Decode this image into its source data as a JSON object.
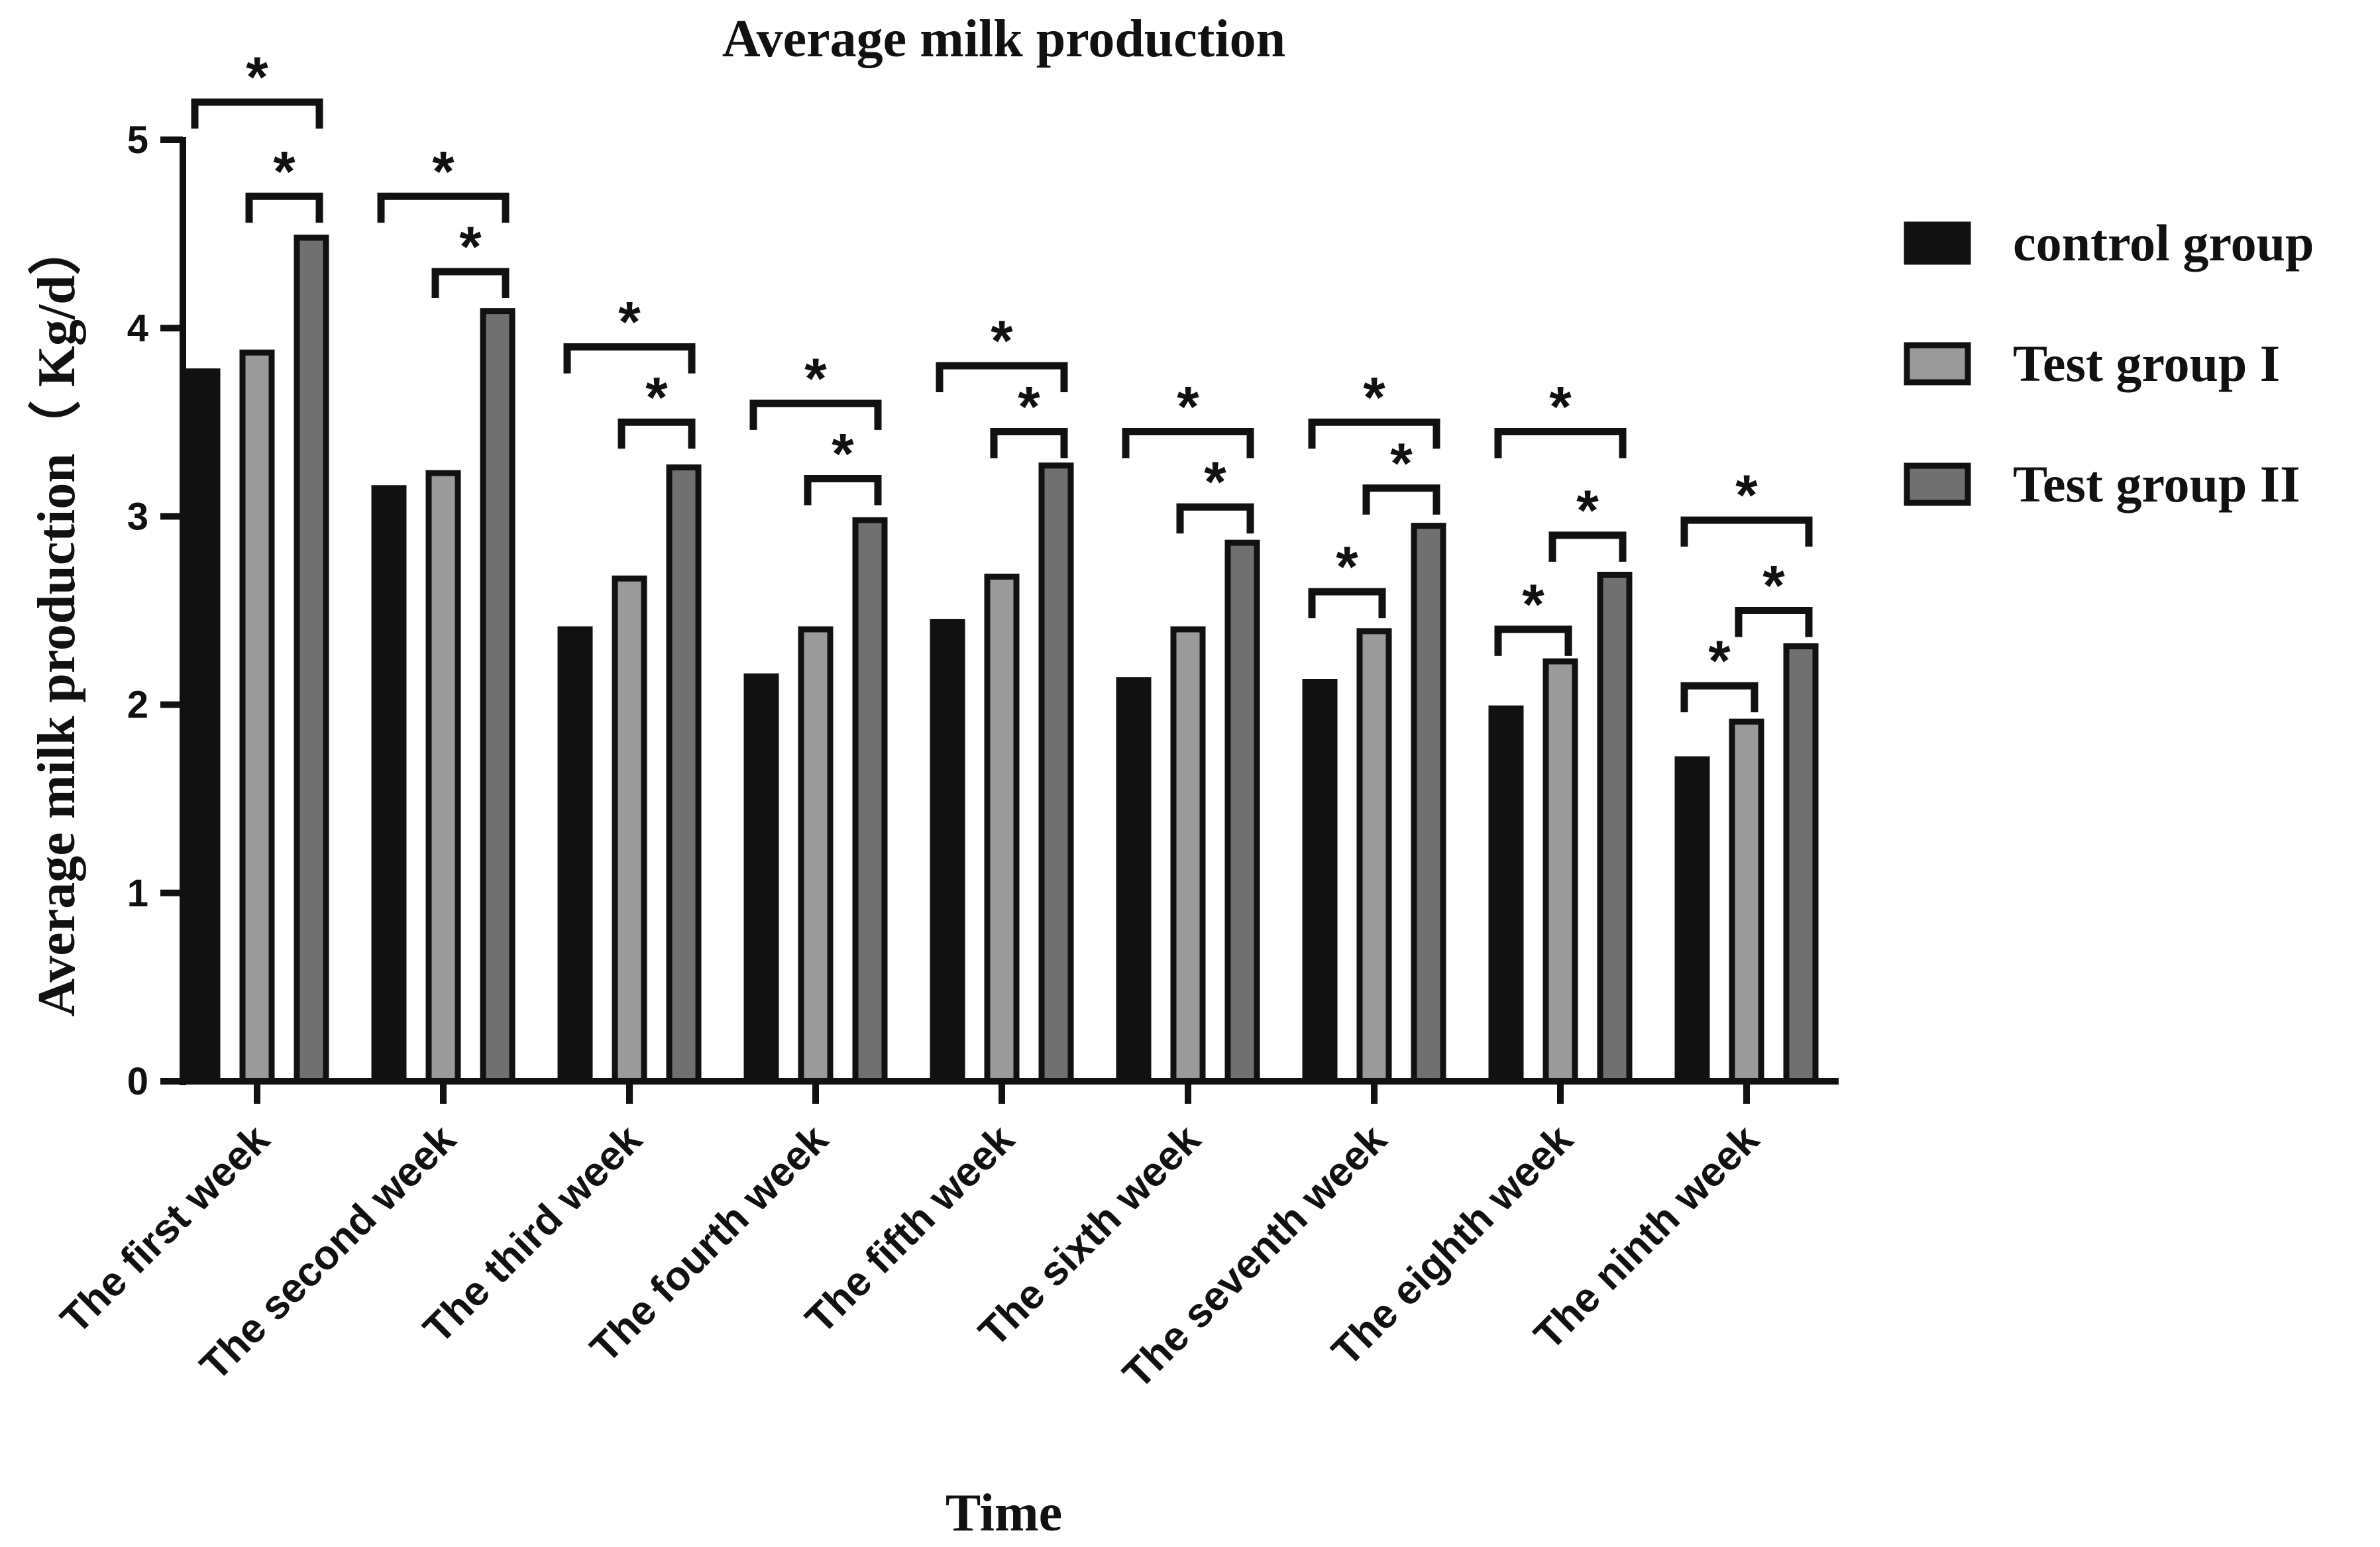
{
  "chart_data": {
    "type": "bar",
    "title": "Average milk production",
    "xlabel": "Time",
    "ylabel": "Average milk production（ Kg/d）",
    "ylim": [
      0,
      5
    ],
    "yticks": [
      "0",
      "1",
      "2",
      "3",
      "4",
      "5"
    ],
    "grid": false,
    "legend_position": "right",
    "categories": [
      "The first week",
      "The second week",
      "The third week",
      "The fourth week",
      "The fifth week",
      "The sixth week",
      "The seventh week",
      "The eighth week",
      "The ninth week"
    ],
    "series": [
      {
        "name": "control group",
        "color": "#111111",
        "values": [
          3.77,
          3.15,
          2.4,
          2.15,
          2.44,
          2.13,
          2.12,
          1.98,
          1.71
        ]
      },
      {
        "name": "Test group I",
        "color": "#9a9a9a",
        "values": [
          3.87,
          3.23,
          2.67,
          2.4,
          2.68,
          2.4,
          2.39,
          2.23,
          1.91
        ]
      },
      {
        "name": "Test group II",
        "color": "#707070",
        "values": [
          4.48,
          4.09,
          3.26,
          2.98,
          3.27,
          2.86,
          2.95,
          2.69,
          2.31
        ]
      }
    ],
    "significance": {
      "marker": "*",
      "brackets": [
        [
          {
            "from": 0,
            "to": 2,
            "y": 5.2
          },
          {
            "from": 1,
            "to": 2,
            "y": 4.7
          }
        ],
        [
          {
            "from": 0,
            "to": 2,
            "y": 4.7
          },
          {
            "from": 1,
            "to": 2,
            "y": 4.3
          }
        ],
        [
          {
            "from": 0,
            "to": 2,
            "y": 3.9
          },
          {
            "from": 1,
            "to": 2,
            "y": 3.5
          }
        ],
        [
          {
            "from": 0,
            "to": 2,
            "y": 3.6
          },
          {
            "from": 1,
            "to": 2,
            "y": 3.2
          }
        ],
        [
          {
            "from": 0,
            "to": 2,
            "y": 3.8
          },
          {
            "from": 1,
            "to": 2,
            "y": 3.45
          }
        ],
        [
          {
            "from": 0,
            "to": 2,
            "y": 3.45
          },
          {
            "from": 1,
            "to": 2,
            "y": 3.05
          }
        ],
        [
          {
            "from": 0,
            "to": 2,
            "y": 3.5
          },
          {
            "from": 1,
            "to": 2,
            "y": 3.15
          },
          {
            "from": 0,
            "to": 1,
            "y": 2.6
          }
        ],
        [
          {
            "from": 0,
            "to": 2,
            "y": 3.45
          },
          {
            "from": 1,
            "to": 2,
            "y": 2.9
          },
          {
            "from": 0,
            "to": 1,
            "y": 2.4
          }
        ],
        [
          {
            "from": 0,
            "to": 2,
            "y": 2.98
          },
          {
            "from": 1,
            "to": 2,
            "y": 2.5
          },
          {
            "from": 0,
            "to": 1,
            "y": 2.1
          }
        ]
      ]
    }
  }
}
